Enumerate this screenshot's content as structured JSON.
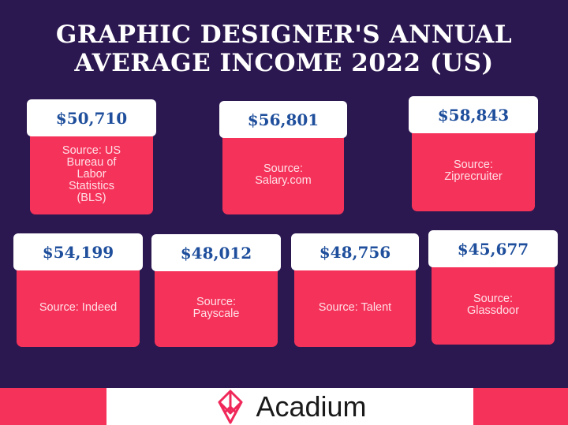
{
  "title_line1": "GRAPHIC DESIGNER'S ANNUAL",
  "title_line2": "AVERAGE INCOME 2022 (US)",
  "cards": [
    {
      "value": "$50,710",
      "source": "Source: US Bureau of Labor Statistics (BLS)"
    },
    {
      "value": "$56,801",
      "source": "Source: Salary.com"
    },
    {
      "value": "$58,843",
      "source": "Source: Ziprecruiter"
    },
    {
      "value": "$54,199",
      "source": "Source: Indeed"
    },
    {
      "value": "$48,012",
      "source": "Source: Payscale"
    },
    {
      "value": "$48,756",
      "source": "Source: Talent"
    },
    {
      "value": "$45,677",
      "source": "Source: Glassdoor"
    }
  ],
  "footer": {
    "brand": "Acadium",
    "logo_icon": "acadium-diamond-logo"
  },
  "colors": {
    "background": "#2c1850",
    "accent": "#f5325a",
    "value_text": "#1f4f9c"
  }
}
